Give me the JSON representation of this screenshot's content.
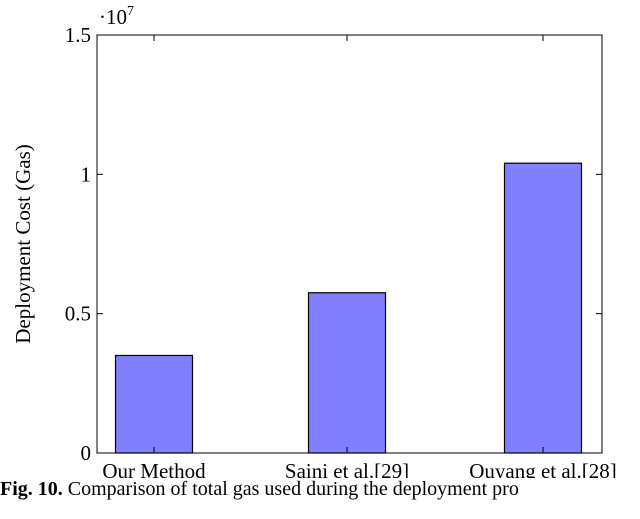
{
  "chart_data": {
    "type": "bar",
    "categories": [
      "Our Method",
      "Saini et al.[29]",
      "Ouyang et al.[28]"
    ],
    "values": [
      3500000,
      5750000,
      10400000
    ],
    "title": "",
    "xlabel": "",
    "ylabel": "Deployment Cost (Gas)",
    "ylim": [
      0,
      15000000
    ],
    "yticks": [
      0,
      5000000,
      10000000,
      15000000
    ],
    "ytick_labels": [
      "0",
      "0.5",
      "1",
      "1.5"
    ],
    "y_multiplier": "·10",
    "y_multiplier_exp": "7",
    "bar_color": "#8080ff",
    "bar_edge_color": "#000000",
    "grid": false,
    "legend": "none"
  },
  "caption": {
    "label": "Fig. 10.",
    "text": "Comparison of total gas used during the deployment pro"
  }
}
